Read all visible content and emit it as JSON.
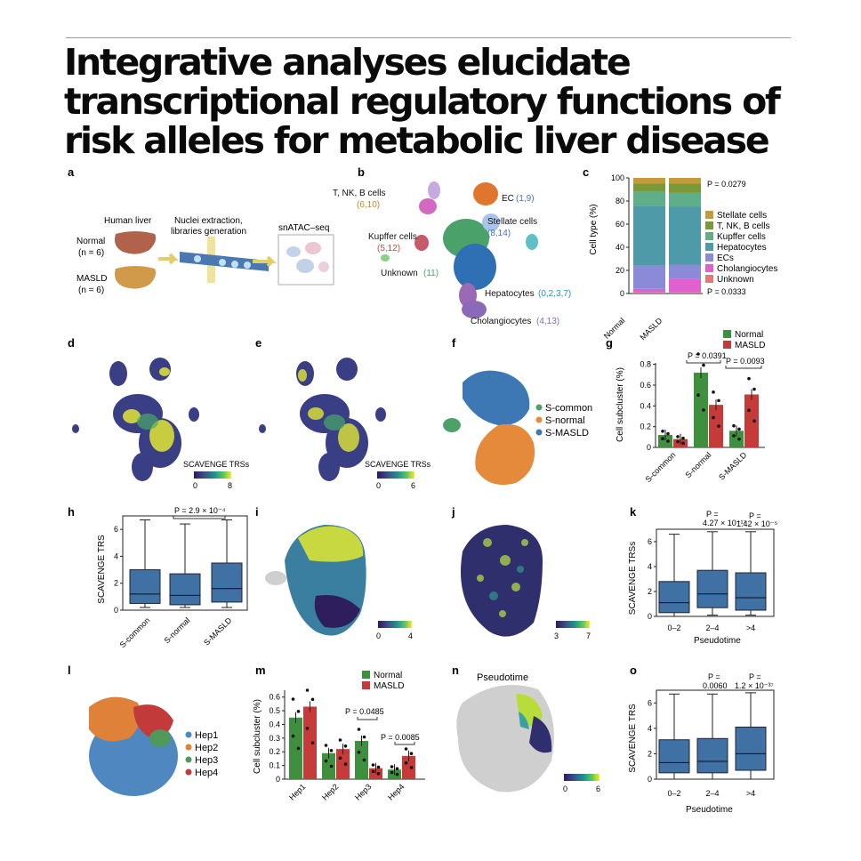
{
  "title": "Integrative analyses elucidate transcriptional regulatory functions of risk alleles for metabolic liver disease",
  "panel_letters": [
    "a",
    "b",
    "c",
    "d",
    "e",
    "f",
    "g",
    "h",
    "i",
    "j",
    "k",
    "l",
    "m",
    "n",
    "o"
  ],
  "panel_a": {
    "human_liver": "Human liver",
    "step1": "Nuclei extraction,",
    "step1b": "libraries generation",
    "step2": "snATAC–seq",
    "normal": "Normal",
    "normal_n": "(n = 6)",
    "masld": "MASLD",
    "masld_n": "(n = 6)"
  },
  "panel_b": {
    "labels": [
      {
        "name": "T, NK, B cells",
        "ids": "(6,10)"
      },
      {
        "name": "EC",
        "ids": "(1,9)"
      },
      {
        "name": "Stellate cells",
        "ids": "(8,14)"
      },
      {
        "name": "Kupffer cells",
        "ids": "(5,12)"
      },
      {
        "name": "Unknown",
        "ids": "(11)"
      },
      {
        "name": "Hepatocytes",
        "ids": "(0,2,3,7)"
      },
      {
        "name": "Cholangiocytes",
        "ids": "(4,13)"
      }
    ]
  },
  "panel_c": {
    "ylabel": "Cell type (%)",
    "yticks": [
      "0",
      "20",
      "40",
      "60",
      "80",
      "100"
    ],
    "categories": [
      "Normal",
      "MASLD"
    ],
    "p_top": "P = 0.0279",
    "p_bottom": "P = 0.0333",
    "legend": [
      {
        "name": "Stellate cells",
        "color": "#c49a3a"
      },
      {
        "name": "T, NK, B cells",
        "color": "#7a9a3a"
      },
      {
        "name": "Kupffer cells",
        "color": "#5fae8a"
      },
      {
        "name": "Hepatocytes",
        "color": "#4e9aa8"
      },
      {
        "name": "ECs",
        "color": "#8a8ad8"
      },
      {
        "name": "Cholangiocytes",
        "color": "#e060d0"
      },
      {
        "name": "Unknown",
        "color": "#e07a7a"
      }
    ]
  },
  "panel_d": {
    "scale_label": "SCAVENGE TRSs",
    "min": "0",
    "max": "8"
  },
  "panel_e": {
    "scale_label": "SCAVENGE TRSs",
    "min": "0",
    "max": "6"
  },
  "panel_f": {
    "legend": [
      "S-common",
      "S-normal",
      "S-MASLD"
    ]
  },
  "panel_g": {
    "ylabel": "Cell subcluster (%)",
    "yticks": [
      "0",
      "0.2",
      "0.4",
      "0.6",
      "0.8"
    ],
    "categories": [
      "S-common",
      "S-normal",
      "S-MASLD"
    ],
    "legend": [
      "Normal",
      "MASLD"
    ],
    "p1": "P = 0.0391",
    "p2": "P = 0.0093"
  },
  "panel_h": {
    "ylabel": "SCAVENGE TRS",
    "yticks": [
      "0",
      "2",
      "4",
      "6"
    ],
    "categories": [
      "S-common",
      "S-normal",
      "S-MASLD"
    ],
    "p": "P = 2.9 × 10⁻⁴"
  },
  "panel_i": {
    "min": "0",
    "max": "4"
  },
  "panel_j": {
    "min": "3",
    "max": "7"
  },
  "panel_k": {
    "ylabel": "SCAVENGE TRSs",
    "xlabel": "Pseudotime",
    "yticks": [
      "0",
      "2",
      "4",
      "6"
    ],
    "categories": [
      "0–2",
      "2–4",
      ">4"
    ],
    "p1a": "P =",
    "p1b": "4.27 × 10⁻¹⁷",
    "p2a": "P =",
    "p2b": "1.42 × 10⁻⁵"
  },
  "panel_l": {
    "legend": [
      "Hep1",
      "Hep2",
      "Hep3",
      "Hep4"
    ]
  },
  "panel_m": {
    "ylabel": "Cell subcluster (%)",
    "yticks": [
      "0",
      "0.1",
      "0.2",
      "0.3",
      "0.4",
      "0.5",
      "0.6"
    ],
    "categories": [
      "Hep1",
      "Hep2",
      "Hep3",
      "Hep4"
    ],
    "legend": [
      "Normal",
      "MASLD"
    ],
    "p1": "P = 0.0485",
    "p2": "P = 0.0085"
  },
  "panel_n": {
    "title": "Pseudotime",
    "min": "0",
    "max": "6"
  },
  "panel_o": {
    "ylabel": "SCAVENGE TRS",
    "xlabel": "Pseudotime",
    "yticks": [
      "0",
      "2",
      "4",
      "6"
    ],
    "categories": [
      "0–2",
      "2–4",
      ">4"
    ],
    "p1a": "P =",
    "p1b": "0.0060",
    "p2a": "P =",
    "p2b": "1.2 × 10⁻³⁷"
  },
  "chart_data": [
    {
      "id": "c",
      "type": "bar",
      "stacked": true,
      "categories": [
        "Normal",
        "MASLD"
      ],
      "ylim": [
        0,
        100
      ],
      "series": [
        {
          "name": "Unknown",
          "values": [
            1,
            1
          ]
        },
        {
          "name": "Cholangiocytes",
          "values": [
            3,
            12
          ]
        },
        {
          "name": "ECs",
          "values": [
            20,
            12
          ]
        },
        {
          "name": "Hepatocytes",
          "values": [
            52,
            50
          ]
        },
        {
          "name": "Kupffer cells",
          "values": [
            12,
            12
          ]
        },
        {
          "name": "T, NK, B cells",
          "values": [
            7,
            8
          ]
        },
        {
          "name": "Stellate cells",
          "values": [
            5,
            5
          ]
        }
      ]
    },
    {
      "id": "g",
      "type": "bar",
      "categories": [
        "S-common",
        "S-normal",
        "S-MASLD"
      ],
      "ylim": [
        0,
        0.9
      ],
      "series": [
        {
          "name": "Normal",
          "values": [
            0.12,
            0.72,
            0.16
          ]
        },
        {
          "name": "MASLD",
          "values": [
            0.08,
            0.41,
            0.51
          ]
        }
      ]
    },
    {
      "id": "h",
      "type": "box",
      "categories": [
        "S-common",
        "S-normal",
        "S-MASLD"
      ],
      "ylim": [
        0,
        7
      ],
      "boxes": [
        [
          0.2,
          0.5,
          1.2,
          3.0,
          6.7
        ],
        [
          0.2,
          0.4,
          1.1,
          2.7,
          6.4
        ],
        [
          0.2,
          0.6,
          1.6,
          3.5,
          6.7
        ]
      ]
    },
    {
      "id": "k",
      "type": "box",
      "categories": [
        "0–2",
        "2–4",
        ">4"
      ],
      "ylim": [
        0,
        7
      ],
      "boxes": [
        [
          0,
          0.3,
          1.1,
          2.8,
          6.6
        ],
        [
          0.1,
          0.7,
          1.8,
          3.7,
          6.8
        ],
        [
          0.1,
          0.5,
          1.5,
          3.5,
          6.8
        ]
      ]
    },
    {
      "id": "m",
      "type": "bar",
      "categories": [
        "Hep1",
        "Hep2",
        "Hep3",
        "Hep4"
      ],
      "ylim": [
        0,
        0.65
      ],
      "series": [
        {
          "name": "Normal",
          "values": [
            0.45,
            0.19,
            0.28,
            0.07
          ]
        },
        {
          "name": "MASLD",
          "values": [
            0.53,
            0.22,
            0.08,
            0.17
          ]
        }
      ]
    },
    {
      "id": "o",
      "type": "box",
      "categories": [
        "0–2",
        "2–4",
        ">4"
      ],
      "ylim": [
        0,
        7
      ],
      "boxes": [
        [
          0,
          0.5,
          1.3,
          3.1,
          6.7
        ],
        [
          0,
          0.5,
          1.4,
          3.2,
          6.7
        ],
        [
          0,
          0.7,
          2.0,
          4.1,
          6.8
        ]
      ]
    }
  ]
}
